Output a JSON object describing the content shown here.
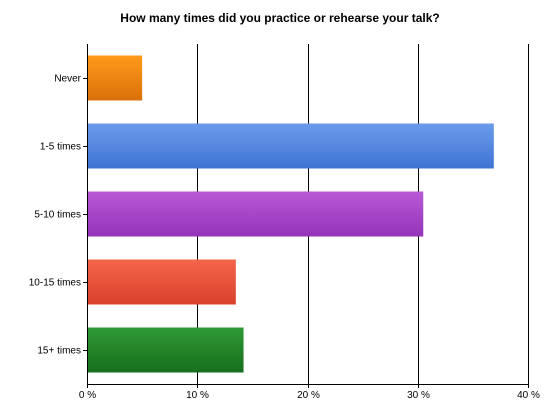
{
  "chart_data": {
    "type": "bar",
    "orientation": "horizontal",
    "title": "How many times did you practice or rehearse your talk?",
    "categories": [
      "Never",
      "1-5 times",
      "5-10 times",
      "10-15 times",
      "15+ times"
    ],
    "values": [
      5.0,
      36.9,
      30.5,
      13.5,
      14.2
    ],
    "value_unit": "%",
    "xlim": [
      0,
      40
    ],
    "x_ticks": [
      "0 %",
      "10 %",
      "20 %",
      "30 %",
      "40 %"
    ],
    "grid": true,
    "legend": "none",
    "colors": [
      [
        "#ff9a1a",
        "#d9700a"
      ],
      [
        "#6a9bea",
        "#3f74d4"
      ],
      [
        "#b85ad6",
        "#9433b8"
      ],
      [
        "#f5654a",
        "#d8412c"
      ],
      [
        "#2f9a35",
        "#176f1d"
      ]
    ]
  }
}
